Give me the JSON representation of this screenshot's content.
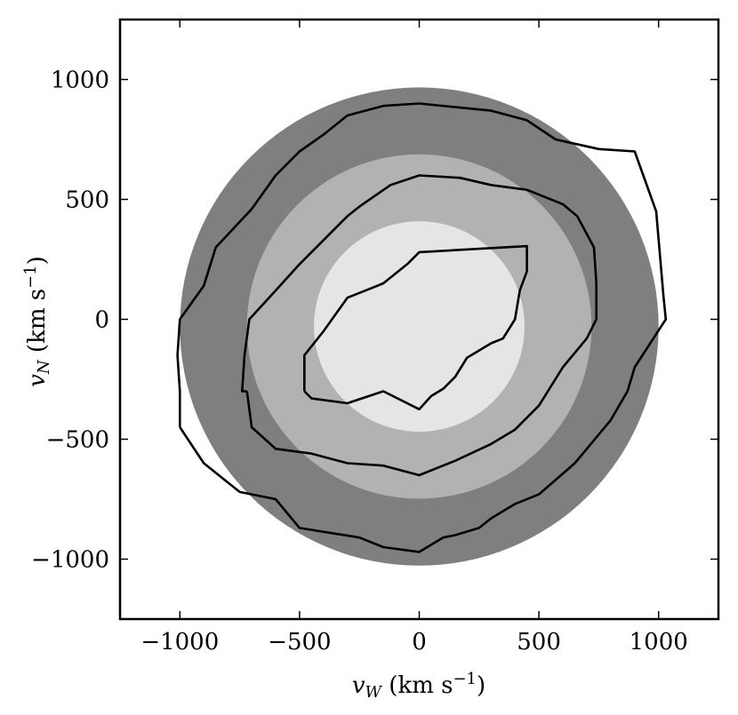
{
  "chart_data": {
    "type": "contour",
    "xlabel": "v_W (km s^-1)",
    "ylabel": "v_N (km s^-1)",
    "xlabel_parts": {
      "var": "v",
      "sub": "W",
      "unit": " (km s",
      "sup": "−1",
      "close": ")"
    },
    "ylabel_parts": {
      "var": "v",
      "sub": "N",
      "unit": " (km s",
      "sup": "−1",
      "close": ")"
    },
    "xlim": [
      -1250,
      1250
    ],
    "ylim": [
      -1250,
      1250
    ],
    "xticks": [
      -1000,
      -500,
      0,
      500,
      1000
    ],
    "yticks": [
      -1000,
      -500,
      0,
      500,
      1000
    ],
    "xtick_labels": [
      "−1000",
      "−500",
      "0",
      "500",
      "1000"
    ],
    "ytick_labels": [
      "−1000",
      "−500",
      "0",
      "500",
      "1000"
    ],
    "grid": false,
    "shaded_regions": [
      {
        "shape": "circle",
        "cx": 0,
        "cy": -30,
        "r": 1000,
        "color": "#7f7f7f"
      },
      {
        "shape": "circle",
        "cx": 0,
        "cy": -30,
        "r": 720,
        "color": "#b2b2b2"
      },
      {
        "shape": "circle",
        "cx": 0,
        "cy": -30,
        "r": 440,
        "color": "#e5e5e5"
      }
    ],
    "contours": [
      {
        "color": "#000000",
        "points": [
          [
            -1000,
            -450
          ],
          [
            -900,
            -600
          ],
          [
            -750,
            -720
          ],
          [
            -600,
            -750
          ],
          [
            -500,
            -870
          ],
          [
            -250,
            -910
          ],
          [
            -150,
            -950
          ],
          [
            0,
            -970
          ],
          [
            100,
            -910
          ],
          [
            150,
            -900
          ],
          [
            250,
            -870
          ],
          [
            300,
            -830
          ],
          [
            400,
            -770
          ],
          [
            500,
            -730
          ],
          [
            650,
            -600
          ],
          [
            800,
            -420
          ],
          [
            870,
            -300
          ],
          [
            900,
            -200
          ],
          [
            1030,
            0
          ],
          [
            1020,
            100
          ],
          [
            990,
            450
          ],
          [
            900,
            700
          ],
          [
            750,
            710
          ],
          [
            570,
            750
          ],
          [
            450,
            830
          ],
          [
            300,
            870
          ],
          [
            0,
            900
          ],
          [
            -150,
            890
          ],
          [
            -300,
            850
          ],
          [
            -400,
            770
          ],
          [
            -500,
            700
          ],
          [
            -600,
            600
          ],
          [
            -700,
            460
          ],
          [
            -850,
            300
          ],
          [
            -900,
            140
          ],
          [
            -1000,
            0
          ],
          [
            -1010,
            -150
          ],
          [
            -1000,
            -300
          ],
          [
            -1000,
            -450
          ]
        ]
      },
      {
        "color": "#000000",
        "points": [
          [
            -720,
            -300
          ],
          [
            -700,
            -450
          ],
          [
            -600,
            -540
          ],
          [
            -450,
            -560
          ],
          [
            -300,
            -600
          ],
          [
            -150,
            -610
          ],
          [
            0,
            -650
          ],
          [
            100,
            -610
          ],
          [
            150,
            -590
          ],
          [
            300,
            -520
          ],
          [
            400,
            -460
          ],
          [
            500,
            -360
          ],
          [
            600,
            -200
          ],
          [
            700,
            -80
          ],
          [
            740,
            0
          ],
          [
            740,
            150
          ],
          [
            730,
            300
          ],
          [
            660,
            430
          ],
          [
            600,
            480
          ],
          [
            450,
            540
          ],
          [
            300,
            560
          ],
          [
            170,
            590
          ],
          [
            0,
            600
          ],
          [
            -120,
            560
          ],
          [
            -250,
            470
          ],
          [
            -300,
            430
          ],
          [
            -400,
            330
          ],
          [
            -500,
            230
          ],
          [
            -600,
            120
          ],
          [
            -710,
            0
          ],
          [
            -730,
            -150
          ],
          [
            -740,
            -300
          ],
          [
            -720,
            -300
          ]
        ]
      },
      {
        "color": "#000000",
        "points": [
          [
            -480,
            -300
          ],
          [
            -480,
            -150
          ],
          [
            -400,
            -50
          ],
          [
            -300,
            90
          ],
          [
            -200,
            130
          ],
          [
            -150,
            150
          ],
          [
            -50,
            230
          ],
          [
            0,
            280
          ],
          [
            450,
            305
          ],
          [
            450,
            200
          ],
          [
            420,
            120
          ],
          [
            400,
            0
          ],
          [
            350,
            -80
          ],
          [
            300,
            -100
          ],
          [
            250,
            -130
          ],
          [
            200,
            -160
          ],
          [
            150,
            -240
          ],
          [
            100,
            -290
          ],
          [
            50,
            -320
          ],
          [
            0,
            -375
          ],
          [
            -150,
            -300
          ],
          [
            -300,
            -350
          ],
          [
            -450,
            -330
          ],
          [
            -480,
            -300
          ]
        ]
      }
    ]
  }
}
